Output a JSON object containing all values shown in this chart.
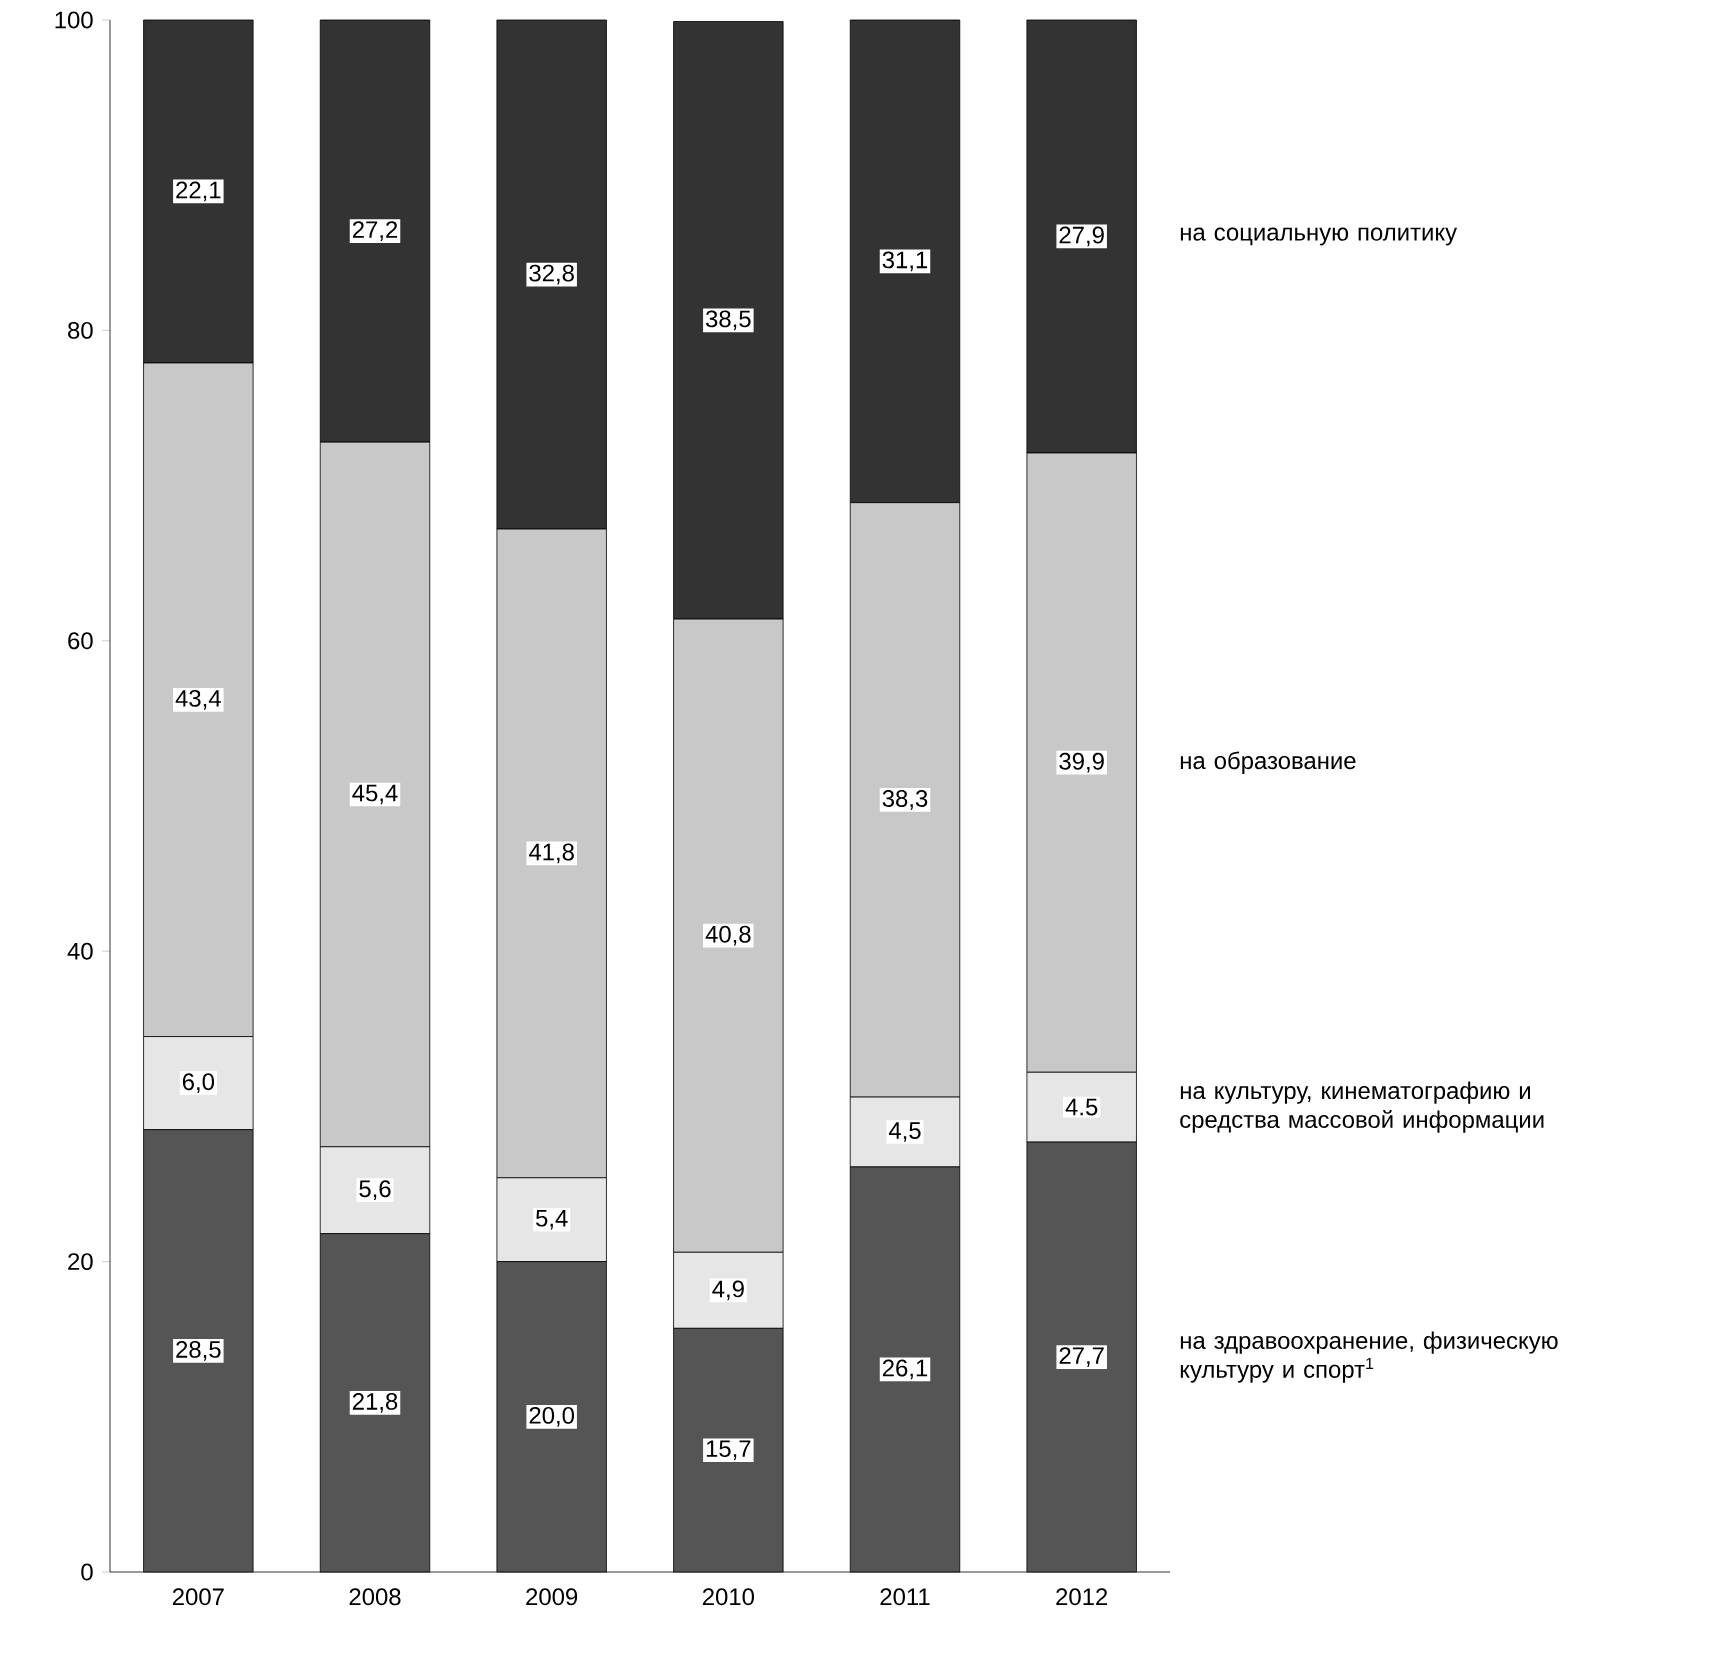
{
  "chart_data": {
    "type": "bar",
    "stacked": true,
    "categories": [
      "2007",
      "2008",
      "2009",
      "2010",
      "2011",
      "2012"
    ],
    "series": [
      {
        "name": "на здравоохранение, физическую культуру и спорт$^{1}$",
        "color": "#555555",
        "values": [
          28.5,
          21.8,
          20.0,
          15.7,
          26.1,
          27.7
        ],
        "value_labels": [
          "28,5",
          "21,8",
          "20,0",
          "15,7",
          "26,1",
          "27,7"
        ]
      },
      {
        "name": "на культуру, кинематографию и средства массовой информации",
        "color": "#e6e6e6",
        "values": [
          6.0,
          5.6,
          5.4,
          4.9,
          4.5,
          4.5
        ],
        "value_labels": [
          "6,0",
          "5,6",
          "5,4",
          "4,9",
          "4,5",
          "4.5"
        ]
      },
      {
        "name": "на образование",
        "color": "#c8c8c8",
        "values": [
          43.4,
          45.4,
          41.8,
          40.8,
          38.3,
          39.9
        ],
        "value_labels": [
          "43,4",
          "45,4",
          "41,8",
          "40,8",
          "38,3",
          "39,9"
        ]
      },
      {
        "name": "на социальную политику",
        "color": "#333333",
        "values": [
          22.1,
          27.2,
          32.8,
          38.5,
          31.1,
          27.9
        ],
        "value_labels": [
          "22,1",
          "27,2",
          "32,8",
          "38,5",
          "31,1",
          "27,9"
        ]
      }
    ],
    "ylim": [
      0,
      100
    ],
    "yticks": [
      0,
      20,
      40,
      60,
      80,
      100
    ],
    "grid": false,
    "legend": false
  }
}
